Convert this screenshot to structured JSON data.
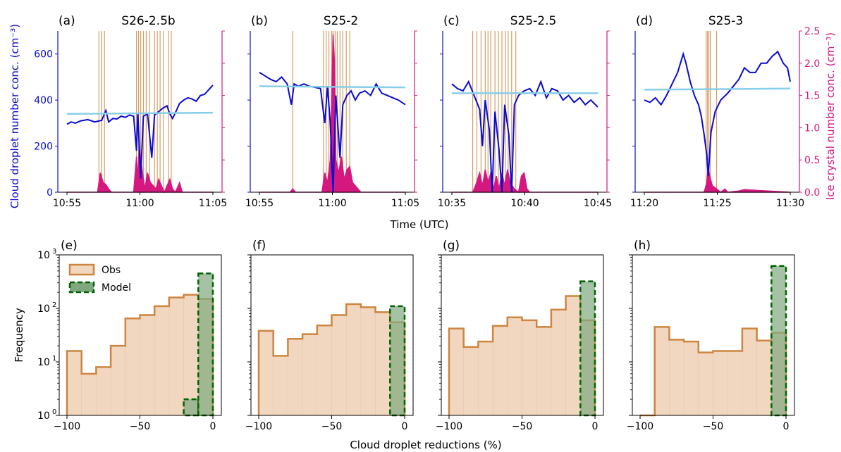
{
  "figure": {
    "top_ylabel_left": "Cloud droplet number conc. (cm⁻³)",
    "top_ylabel_right": "Ice crystal number conc. (cm⁻³)",
    "top_xlabel": "Time (UTC)",
    "bottom_ylabel": "Frequency",
    "bottom_xlabel": "Cloud droplet reductions (%)",
    "colors": {
      "droplet": "#0a0ad2",
      "ice": "#d4187f",
      "mean_line": "#87ceeb",
      "obs": "#cd853f",
      "obs_fill": "#f2d7c0",
      "model": "#006400",
      "model_fill": "#7fa87f"
    },
    "legend": {
      "obs": "Obs",
      "model": "Model"
    }
  },
  "chart_data": [
    {
      "type": "line",
      "panel": "(a)",
      "title": "S26-2.5b",
      "xticks": [
        "10:55",
        "11:00",
        "11:05"
      ],
      "x_range_min": [
        0,
        10.5
      ],
      "ylim_left": [
        0,
        700
      ],
      "yticks_left": [
        0,
        200,
        400,
        600
      ],
      "ylim_right": [
        0,
        2.5
      ],
      "yticks_right": [
        0.0,
        0.5,
        1.0,
        1.5,
        2.0,
        2.5
      ],
      "droplet_mean": [
        340,
        345
      ],
      "droplet_series": [
        [
          0,
          295
        ],
        [
          0.3,
          305
        ],
        [
          0.6,
          300
        ],
        [
          1.0,
          310
        ],
        [
          1.5,
          315
        ],
        [
          2.0,
          305
        ],
        [
          2.5,
          312
        ],
        [
          2.8,
          355
        ],
        [
          3.0,
          305
        ],
        [
          3.3,
          320
        ],
        [
          3.6,
          318
        ],
        [
          3.9,
          330
        ],
        [
          4.2,
          325
        ],
        [
          4.5,
          335
        ],
        [
          4.8,
          330
        ],
        [
          5.0,
          180
        ],
        [
          5.1,
          345
        ],
        [
          5.3,
          60
        ],
        [
          5.5,
          330
        ],
        [
          5.8,
          340
        ],
        [
          6.1,
          150
        ],
        [
          6.3,
          335
        ],
        [
          6.6,
          350
        ],
        [
          6.9,
          365
        ],
        [
          7.2,
          375
        ],
        [
          7.4,
          340
        ],
        [
          7.6,
          320
        ],
        [
          7.8,
          345
        ],
        [
          8.1,
          385
        ],
        [
          8.4,
          400
        ],
        [
          8.7,
          410
        ],
        [
          9.0,
          405
        ],
        [
          9.3,
          395
        ],
        [
          9.6,
          420
        ],
        [
          9.9,
          425
        ],
        [
          10.2,
          445
        ],
        [
          10.5,
          465
        ]
      ],
      "ice_series": [
        [
          0,
          0
        ],
        [
          2.2,
          0
        ],
        [
          2.4,
          0.3
        ],
        [
          2.6,
          0.15
        ],
        [
          2.8,
          0.12
        ],
        [
          3.0,
          0.05
        ],
        [
          3.2,
          0
        ],
        [
          4.8,
          0
        ],
        [
          5.0,
          0.55
        ],
        [
          5.1,
          0.2
        ],
        [
          5.2,
          0.7
        ],
        [
          5.4,
          0.35
        ],
        [
          5.6,
          0.05
        ],
        [
          5.8,
          0.3
        ],
        [
          6.0,
          0.15
        ],
        [
          6.2,
          0.1
        ],
        [
          6.4,
          0.05
        ],
        [
          6.6,
          0.2
        ],
        [
          6.8,
          0.1
        ],
        [
          7.0,
          0
        ],
        [
          7.4,
          0.2
        ],
        [
          7.6,
          0.05
        ],
        [
          7.8,
          0
        ],
        [
          8.1,
          0.15
        ],
        [
          8.3,
          0
        ],
        [
          10.5,
          0
        ]
      ],
      "ice_spikes": [
        2.3,
        2.5,
        2.7,
        5.0,
        5.15,
        5.3,
        5.5,
        5.7,
        5.95,
        6.3,
        6.5,
        6.7,
        6.95,
        7.3,
        7.5
      ]
    },
    {
      "type": "line",
      "panel": "(b)",
      "title": "S25-2",
      "xticks": [
        "10:55",
        "11:00",
        "11:05"
      ],
      "x_range_min": [
        0,
        10.5
      ],
      "ylim_left": [
        0,
        700
      ],
      "yticks_left": [
        0,
        200,
        400,
        600
      ],
      "ylim_right": [
        0,
        2.5
      ],
      "yticks_right": [
        0.0,
        0.5,
        1.0,
        1.5,
        2.0,
        2.5
      ],
      "droplet_mean": [
        460,
        455
      ],
      "droplet_series": [
        [
          0,
          520
        ],
        [
          0.4,
          505
        ],
        [
          0.8,
          490
        ],
        [
          1.2,
          480
        ],
        [
          1.6,
          500
        ],
        [
          2.0,
          470
        ],
        [
          2.3,
          380
        ],
        [
          2.5,
          470
        ],
        [
          2.8,
          460
        ],
        [
          3.2,
          470
        ],
        [
          3.6,
          460
        ],
        [
          4.0,
          455
        ],
        [
          4.4,
          450
        ],
        [
          4.7,
          300
        ],
        [
          4.9,
          460
        ],
        [
          5.1,
          300
        ],
        [
          5.3,
          0
        ],
        [
          5.5,
          420
        ],
        [
          5.8,
          150
        ],
        [
          6.0,
          380
        ],
        [
          6.3,
          420
        ],
        [
          6.6,
          440
        ],
        [
          6.9,
          400
        ],
        [
          7.2,
          430
        ],
        [
          7.6,
          440
        ],
        [
          8.0,
          420
        ],
        [
          8.4,
          470
        ],
        [
          8.8,
          430
        ],
        [
          9.2,
          420
        ],
        [
          9.6,
          410
        ],
        [
          10.0,
          400
        ],
        [
          10.5,
          380
        ]
      ],
      "ice_series": [
        [
          0,
          0
        ],
        [
          2.2,
          0
        ],
        [
          2.4,
          0.05
        ],
        [
          2.6,
          0
        ],
        [
          4.5,
          0
        ],
        [
          4.7,
          0.3
        ],
        [
          4.9,
          0.15
        ],
        [
          5.1,
          0.5
        ],
        [
          5.3,
          2.45
        ],
        [
          5.4,
          2.0
        ],
        [
          5.5,
          0.5
        ],
        [
          5.7,
          0.3
        ],
        [
          5.9,
          0.55
        ],
        [
          6.1,
          0.2
        ],
        [
          6.3,
          0.35
        ],
        [
          6.5,
          0.4
        ],
        [
          6.7,
          0.15
        ],
        [
          6.9,
          0.1
        ],
        [
          7.1,
          0.05
        ],
        [
          7.3,
          0
        ],
        [
          10.5,
          0
        ]
      ],
      "ice_spikes": [
        2.4,
        4.6,
        4.8,
        5.0,
        5.2,
        5.3,
        5.45,
        5.6,
        5.8,
        6.0,
        6.25,
        6.5
      ]
    },
    {
      "type": "line",
      "panel": "(c)",
      "title": "S25-2.5",
      "xticks": [
        "10:35",
        "10:40",
        "10:45"
      ],
      "x_range_min": [
        0,
        10.5
      ],
      "ylim_left": [
        0,
        700
      ],
      "yticks_left": [
        0,
        200,
        400,
        600
      ],
      "ylim_right": [
        0,
        2.5
      ],
      "yticks_right": [
        0.0,
        0.5,
        1.0,
        1.5,
        2.0,
        2.5
      ],
      "droplet_mean": [
        430,
        430
      ],
      "droplet_series": [
        [
          0,
          470
        ],
        [
          0.4,
          450
        ],
        [
          0.8,
          440
        ],
        [
          1.2,
          480
        ],
        [
          1.6,
          420
        ],
        [
          2.0,
          360
        ],
        [
          2.2,
          200
        ],
        [
          2.4,
          400
        ],
        [
          2.7,
          270
        ],
        [
          2.9,
          0
        ],
        [
          3.1,
          350
        ],
        [
          3.4,
          180
        ],
        [
          3.6,
          0
        ],
        [
          3.8,
          380
        ],
        [
          4.1,
          250
        ],
        [
          4.3,
          0
        ],
        [
          4.5,
          380
        ],
        [
          4.8,
          420
        ],
        [
          5.2,
          440
        ],
        [
          5.6,
          450
        ],
        [
          6.0,
          420
        ],
        [
          6.4,
          480
        ],
        [
          6.8,
          410
        ],
        [
          7.2,
          450
        ],
        [
          7.6,
          440
        ],
        [
          8.0,
          400
        ],
        [
          8.4,
          420
        ],
        [
          8.8,
          390
        ],
        [
          9.2,
          410
        ],
        [
          9.6,
          380
        ],
        [
          10.0,
          400
        ],
        [
          10.5,
          370
        ]
      ],
      "ice_series": [
        [
          0,
          0
        ],
        [
          1.5,
          0
        ],
        [
          1.7,
          0.1
        ],
        [
          2.0,
          0.3
        ],
        [
          2.2,
          0.1
        ],
        [
          2.4,
          0.35
        ],
        [
          2.6,
          0.15
        ],
        [
          2.8,
          0.3
        ],
        [
          3.0,
          0.05
        ],
        [
          3.2,
          0.25
        ],
        [
          3.4,
          0.05
        ],
        [
          3.6,
          0.3
        ],
        [
          3.8,
          0.1
        ],
        [
          4.0,
          0.35
        ],
        [
          4.2,
          0.15
        ],
        [
          4.5,
          0.05
        ],
        [
          4.8,
          0
        ],
        [
          5.0,
          0.25
        ],
        [
          5.2,
          0.3
        ],
        [
          5.4,
          0.05
        ],
        [
          5.6,
          0
        ],
        [
          10.5,
          0
        ]
      ],
      "ice_spikes": [
        1.5,
        1.8,
        2.1,
        2.4,
        2.6,
        2.8,
        3.1,
        3.35,
        3.6,
        3.85,
        4.05,
        4.3,
        4.6
      ]
    },
    {
      "type": "line",
      "panel": "(d)",
      "title": "S25-3",
      "xticks": [
        "11:20",
        "11:25",
        "11:30"
      ],
      "x_range_min": [
        0,
        10.5
      ],
      "ylim_left": [
        0,
        700
      ],
      "yticks_left": [
        0,
        200,
        400,
        600
      ],
      "ylim_right": [
        0,
        2.5
      ],
      "yticks_right": [
        0.0,
        0.5,
        1.0,
        1.5,
        2.0,
        2.5
      ],
      "droplet_mean": [
        445,
        450
      ],
      "droplet_series": [
        [
          0,
          400
        ],
        [
          0.4,
          390
        ],
        [
          0.8,
          410
        ],
        [
          1.2,
          380
        ],
        [
          1.6,
          420
        ],
        [
          2.0,
          470
        ],
        [
          2.4,
          520
        ],
        [
          2.8,
          600
        ],
        [
          3.0,
          560
        ],
        [
          3.3,
          480
        ],
        [
          3.6,
          420
        ],
        [
          3.9,
          380
        ],
        [
          4.1,
          330
        ],
        [
          4.3,
          250
        ],
        [
          4.5,
          160
        ],
        [
          4.6,
          70
        ],
        [
          4.8,
          260
        ],
        [
          5.1,
          350
        ],
        [
          5.5,
          400
        ],
        [
          6.0,
          430
        ],
        [
          6.4,
          460
        ],
        [
          6.8,
          490
        ],
        [
          7.2,
          540
        ],
        [
          7.6,
          520
        ],
        [
          8.0,
          520
        ],
        [
          8.4,
          560
        ],
        [
          8.8,
          560
        ],
        [
          9.2,
          590
        ],
        [
          9.6,
          610
        ],
        [
          10.0,
          560
        ],
        [
          10.3,
          540
        ],
        [
          10.5,
          480
        ]
      ],
      "ice_series": [
        [
          0,
          0
        ],
        [
          4.3,
          0
        ],
        [
          4.5,
          0.15
        ],
        [
          4.6,
          0.4
        ],
        [
          4.7,
          0.25
        ],
        [
          4.9,
          0.1
        ],
        [
          5.2,
          0.05
        ],
        [
          5.5,
          0
        ],
        [
          5.8,
          0.05
        ],
        [
          6.0,
          0
        ],
        [
          6.8,
          0.02
        ],
        [
          7.2,
          0.04
        ],
        [
          8.0,
          0.03
        ],
        [
          10.5,
          0
        ]
      ],
      "ice_spikes": [
        4.45,
        4.55,
        4.65,
        4.75,
        5.2
      ]
    },
    {
      "type": "histogram",
      "panel": "(e)",
      "bins": [
        -100,
        -90,
        -80,
        -70,
        -60,
        -50,
        -40,
        -30,
        -20,
        -10,
        0
      ],
      "obs_counts": [
        16,
        6,
        8,
        20,
        65,
        75,
        110,
        160,
        180,
        150
      ],
      "model_counts": [
        0,
        0,
        0,
        0,
        0,
        0,
        0,
        0,
        2,
        450
      ],
      "ylim": [
        1,
        1000
      ],
      "yscale": "log",
      "xticks": [
        -100,
        -50,
        0
      ],
      "legend_position": "upper left"
    },
    {
      "type": "histogram",
      "panel": "(f)",
      "bins": [
        -100,
        -90,
        -80,
        -70,
        -60,
        -50,
        -40,
        -30,
        -20,
        -10,
        0
      ],
      "obs_counts": [
        38,
        13,
        27,
        33,
        48,
        75,
        120,
        105,
        85,
        55
      ],
      "model_counts": [
        0,
        0,
        0,
        0,
        0,
        0,
        0,
        0,
        0,
        110
      ],
      "ylim": [
        1,
        1000
      ],
      "yscale": "log",
      "xticks": [
        -100,
        -50,
        0
      ]
    },
    {
      "type": "histogram",
      "panel": "(g)",
      "bins": [
        -100,
        -90,
        -80,
        -70,
        -60,
        -50,
        -40,
        -30,
        -20,
        -10,
        0
      ],
      "obs_counts": [
        42,
        19,
        24,
        47,
        68,
        60,
        45,
        95,
        170,
        60
      ],
      "model_counts": [
        0,
        0,
        0,
        0,
        0,
        0,
        0,
        0,
        0,
        320
      ],
      "ylim": [
        1,
        1000
      ],
      "yscale": "log",
      "xticks": [
        -100,
        -50,
        0
      ]
    },
    {
      "type": "histogram",
      "panel": "(h)",
      "bins": [
        -100,
        -90,
        -80,
        -70,
        -60,
        -50,
        -40,
        -30,
        -20,
        -10,
        0
      ],
      "obs_counts": [
        0,
        45,
        26,
        24,
        15,
        16,
        16,
        42,
        25,
        35
      ],
      "model_counts": [
        0,
        0,
        0,
        0,
        0,
        0,
        0,
        0,
        0,
        620
      ],
      "ylim": [
        1,
        1000
      ],
      "yscale": "log",
      "xticks": [
        -100,
        -50,
        0
      ]
    }
  ]
}
